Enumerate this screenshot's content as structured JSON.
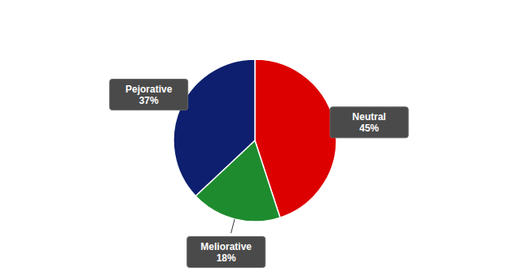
{
  "chart_data": {
    "type": "pie",
    "categories": [
      "Neutral",
      "Meliorative",
      "Pejorative"
    ],
    "values": [
      45,
      18,
      37
    ],
    "value_labels": [
      "45%",
      "18%",
      "37%"
    ],
    "colors": [
      "#dd0000",
      "#1e8c2e",
      "#0d1f6e"
    ],
    "data_labels": true
  }
}
